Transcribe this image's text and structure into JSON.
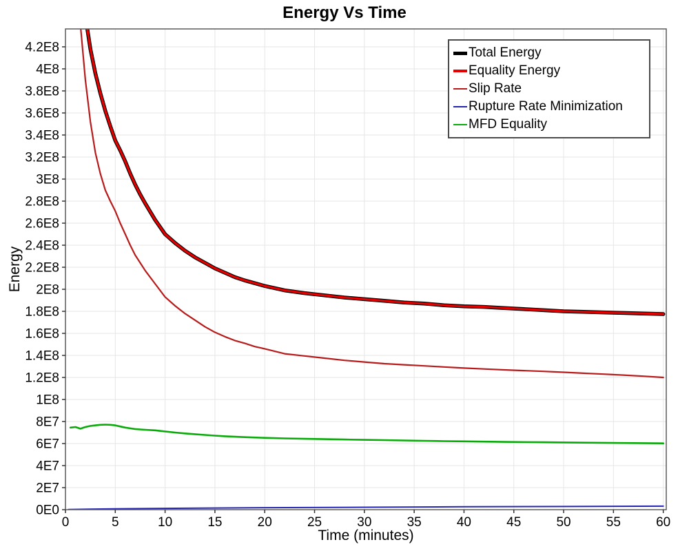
{
  "chart_data": {
    "type": "line",
    "title": "Energy Vs Time",
    "xlabel": "Time (minutes)",
    "ylabel": "Energy",
    "xlim": [
      0,
      60.3
    ],
    "ylim": [
      0,
      436250000.0
    ],
    "grid": true,
    "grid_color": "#e6e6e6",
    "border_color": "#5a5a5a",
    "legend_position": "upper right",
    "x_ticks": [
      0,
      5,
      10,
      15,
      20,
      25,
      30,
      35,
      40,
      45,
      50,
      55,
      60
    ],
    "y_ticks": [
      {
        "v": 0,
        "label": "0E0"
      },
      {
        "v": 20000000.0,
        "label": "2E7"
      },
      {
        "v": 40000000.0,
        "label": "4E7"
      },
      {
        "v": 60000000.0,
        "label": "6E7"
      },
      {
        "v": 80000000.0,
        "label": "8E7"
      },
      {
        "v": 100000000.0,
        "label": "1E8"
      },
      {
        "v": 120000000.0,
        "label": "1.2E8"
      },
      {
        "v": 140000000.0,
        "label": "1.4E8"
      },
      {
        "v": 160000000.0,
        "label": "1.6E8"
      },
      {
        "v": 180000000.0,
        "label": "1.8E8"
      },
      {
        "v": 200000000.0,
        "label": "2E8"
      },
      {
        "v": 220000000.0,
        "label": "2.2E8"
      },
      {
        "v": 240000000.0,
        "label": "2.4E8"
      },
      {
        "v": 260000000.0,
        "label": "2.6E8"
      },
      {
        "v": 280000000.0,
        "label": "2.8E8"
      },
      {
        "v": 300000000.0,
        "label": "3E8"
      },
      {
        "v": 320000000.0,
        "label": "3.2E8"
      },
      {
        "v": 340000000.0,
        "label": "3.4E8"
      },
      {
        "v": 360000000.0,
        "label": "3.6E8"
      },
      {
        "v": 380000000.0,
        "label": "3.8E8"
      },
      {
        "v": 400000000.0,
        "label": "4E8"
      },
      {
        "v": 420000000.0,
        "label": "4.2E8"
      }
    ],
    "series": [
      {
        "name": "Total Energy",
        "color": "#000000",
        "line_width": 5.5,
        "x": [
          1.9,
          2.2,
          2.5,
          3,
          3.5,
          4,
          4.5,
          5,
          5.5,
          6,
          6.5,
          7,
          7.5,
          8,
          9,
          10,
          11,
          12,
          13,
          14,
          15,
          16,
          17,
          18,
          19,
          20,
          22,
          24,
          26,
          28,
          30,
          32,
          34,
          36,
          38,
          40,
          42,
          44,
          46,
          48,
          50,
          52,
          54,
          56,
          58,
          60
        ],
        "y": [
          460000000.0,
          436000000.0,
          418000000.0,
          396000000.0,
          378000000.0,
          362000000.0,
          348000000.0,
          335000000.0,
          326000000.0,
          316000000.0,
          305000000.0,
          295000000.0,
          286000000.0,
          278000000.0,
          263000000.0,
          250000000.0,
          242000000.0,
          235000000.0,
          229000000.0,
          224000000.0,
          219000000.0,
          215000000.0,
          211000000.0,
          208000000.0,
          205500000.0,
          203000000.0,
          199000000.0,
          196500000.0,
          194500000.0,
          192500000.0,
          191000000.0,
          189500000.0,
          188000000.0,
          187000000.0,
          185500000.0,
          184500000.0,
          184000000.0,
          183000000.0,
          182000000.0,
          181000000.0,
          180000000.0,
          179500000.0,
          179000000.0,
          178500000.0,
          178000000.0,
          177500000.0
        ]
      },
      {
        "name": "Equality Energy",
        "color": "#e60000",
        "line_width": 3.2,
        "x": [
          1.9,
          2.2,
          2.5,
          3,
          3.5,
          4,
          4.5,
          5,
          5.5,
          6,
          6.5,
          7,
          7.5,
          8,
          9,
          10,
          11,
          12,
          13,
          14,
          15,
          16,
          17,
          18,
          19,
          20,
          22,
          24,
          26,
          28,
          30,
          32,
          34,
          36,
          38,
          40,
          42,
          44,
          46,
          48,
          50,
          52,
          54,
          56,
          58,
          60
        ],
        "y": [
          460000000.0,
          436000000.0,
          418000000.0,
          396000000.0,
          378000000.0,
          362000000.0,
          348000000.0,
          335000000.0,
          326000000.0,
          316000000.0,
          305000000.0,
          295000000.0,
          286000000.0,
          278000000.0,
          263000000.0,
          250000000.0,
          242000000.0,
          235000000.0,
          229000000.0,
          224000000.0,
          219000000.0,
          215000000.0,
          211000000.0,
          208000000.0,
          205500000.0,
          203000000.0,
          199000000.0,
          196500000.0,
          194500000.0,
          192500000.0,
          191000000.0,
          189500000.0,
          188000000.0,
          187000000.0,
          185500000.0,
          184500000.0,
          184000000.0,
          183000000.0,
          182000000.0,
          181000000.0,
          180000000.0,
          179500000.0,
          179000000.0,
          178500000.0,
          178000000.0,
          177500000.0
        ]
      },
      {
        "name": "Slip Rate",
        "color": "#b81a1a",
        "line_width": 2.2,
        "x": [
          1.2,
          1.5,
          2,
          2.5,
          3,
          3.5,
          4,
          4.5,
          5,
          5.5,
          6,
          6.5,
          7,
          7.5,
          8,
          9,
          10,
          11,
          12,
          13,
          14,
          15,
          16,
          17,
          18,
          19,
          20,
          22,
          24,
          26,
          28,
          30,
          32,
          34,
          36,
          38,
          40,
          42,
          44,
          46,
          48,
          50,
          52,
          54,
          56,
          58,
          60
        ],
        "y": [
          460000000.0,
          440000000.0,
          390000000.0,
          352000000.0,
          324000000.0,
          305000000.0,
          290000000.0,
          280000000.0,
          271000000.0,
          260000000.0,
          250000000.0,
          240000000.0,
          231000000.0,
          224000000.0,
          217000000.0,
          205000000.0,
          193000000.0,
          185000000.0,
          178000000.0,
          172000000.0,
          166000000.0,
          161000000.0,
          157000000.0,
          153500000.0,
          151000000.0,
          148000000.0,
          146000000.0,
          141500000.0,
          139500000.0,
          137500000.0,
          135500000.0,
          134000000.0,
          132500000.0,
          131500000.0,
          130500000.0,
          129500000.0,
          128500000.0,
          127700000.0,
          126900000.0,
          126200000.0,
          125500000.0,
          124700000.0,
          123800000.0,
          123000000.0,
          122100000.0,
          121100000.0,
          120000000.0
        ]
      },
      {
        "name": "Rupture Rate Minimization",
        "color": "#2424b0",
        "line_width": 2,
        "x": [
          0.3,
          5,
          10,
          20,
          30,
          40,
          50,
          60
        ],
        "y": [
          200000.0,
          800000.0,
          1200000.0,
          1800000.0,
          2200000.0,
          2600000.0,
          2900000.0,
          3200000.0
        ]
      },
      {
        "name": "MFD Equality",
        "color": "#09ab09",
        "line_width": 2.6,
        "x": [
          0.5,
          1,
          1.5,
          2,
          2.5,
          3,
          3.5,
          4,
          4.5,
          5,
          5.5,
          6,
          6.5,
          7,
          7.5,
          8,
          9,
          10,
          11,
          12,
          13,
          14,
          15,
          16,
          17,
          18,
          19,
          20,
          22,
          24,
          26,
          28,
          30,
          32,
          34,
          36,
          38,
          40,
          44,
          48,
          52,
          56,
          60
        ],
        "y": [
          74500000.0,
          75000000.0,
          73500000.0,
          75000000.0,
          76000000.0,
          76500000.0,
          77000000.0,
          77200000.0,
          77000000.0,
          76500000.0,
          75500000.0,
          74500000.0,
          73800000.0,
          73200000.0,
          72800000.0,
          72500000.0,
          72000000.0,
          71000000.0,
          70000000.0,
          69200000.0,
          68500000.0,
          67800000.0,
          67200000.0,
          66600000.0,
          66200000.0,
          65800000.0,
          65500000.0,
          65200000.0,
          64700000.0,
          64300000.0,
          64000000.0,
          63700000.0,
          63400000.0,
          63100000.0,
          62800000.0,
          62500000.0,
          62200000.0,
          62000000.0,
          61500000.0,
          61200000.0,
          60800000.0,
          60500000.0,
          60200000.0
        ]
      }
    ],
    "legend": {
      "items": [
        {
          "label": "Total Energy",
          "color": "#000000",
          "thickness": 5
        },
        {
          "label": "Equality Energy",
          "color": "#e60000",
          "thickness": 4
        },
        {
          "label": "Slip Rate",
          "color": "#b81a1a",
          "thickness": 2.5
        },
        {
          "label": "Rupture Rate Minimization",
          "color": "#2424b0",
          "thickness": 2.5
        },
        {
          "label": "MFD Equality",
          "color": "#09ab09",
          "thickness": 2.5
        }
      ]
    }
  }
}
